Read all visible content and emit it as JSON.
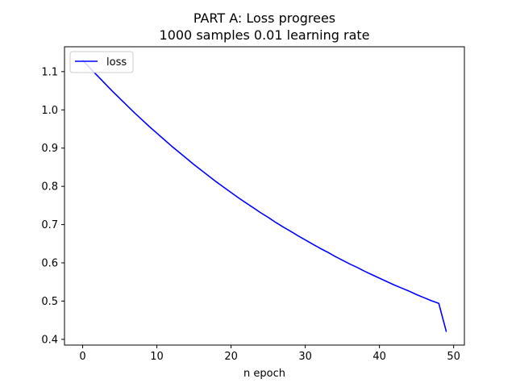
{
  "chart_data": {
    "type": "line",
    "title": "PART A: Loss progrees",
    "subtitle": "1000 samples 0.01 learning rate",
    "xlabel": "n epoch",
    "ylabel": "",
    "xlim": [
      -2.45,
      51.45
    ],
    "ylim": [
      0.385,
      1.165
    ],
    "xticks": [
      0,
      10,
      20,
      30,
      40,
      50
    ],
    "yticks": [
      0.4,
      0.5,
      0.6,
      0.7,
      0.8,
      0.9,
      1.0,
      1.1
    ],
    "grid": false,
    "legend_position": "upper-left",
    "series": [
      {
        "name": "loss",
        "color": "#0000ff",
        "x": [
          0,
          1,
          2,
          3,
          4,
          5,
          6,
          7,
          8,
          9,
          10,
          11,
          12,
          13,
          14,
          15,
          16,
          17,
          18,
          19,
          20,
          21,
          22,
          23,
          24,
          25,
          26,
          27,
          28,
          29,
          30,
          31,
          32,
          33,
          34,
          35,
          36,
          37,
          38,
          39,
          40,
          41,
          42,
          43,
          44,
          45,
          46,
          47,
          48,
          49
        ],
        "values": [
          1.13,
          1.109,
          1.089,
          1.069,
          1.049,
          1.03,
          1.011,
          0.992,
          0.974,
          0.956,
          0.939,
          0.922,
          0.905,
          0.889,
          0.873,
          0.857,
          0.842,
          0.827,
          0.812,
          0.798,
          0.784,
          0.77,
          0.757,
          0.744,
          0.731,
          0.719,
          0.706,
          0.694,
          0.683,
          0.671,
          0.66,
          0.649,
          0.638,
          0.628,
          0.617,
          0.607,
          0.597,
          0.588,
          0.578,
          0.569,
          0.56,
          0.551,
          0.542,
          0.534,
          0.526,
          0.517,
          0.509,
          0.501,
          0.494,
          0.421
        ]
      }
    ]
  }
}
